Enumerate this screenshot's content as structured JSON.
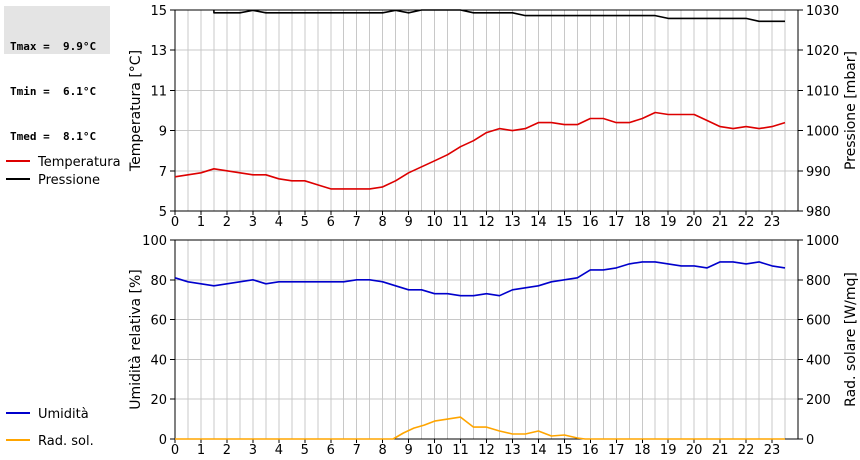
{
  "stats": {
    "lines": [
      "Tmax =  9.9°C",
      "Tmin =  6.1°C",
      "Tmed =  8.1°C"
    ]
  },
  "colors": {
    "temperature": "#dd0000",
    "pressure": "#000000",
    "humidity": "#0000cc",
    "radiation": "#ffa500",
    "grid": "#c8c8c8"
  },
  "chart_data": [
    {
      "type": "line",
      "ylabel": "Temperatura [°C]",
      "y2label": "Pressione [mbar]",
      "ylim": [
        5,
        15
      ],
      "y2lim": [
        980,
        1030
      ],
      "yticks": [
        5,
        7,
        9,
        11,
        13,
        15
      ],
      "y2ticks": [
        980,
        990,
        1000,
        1010,
        1020,
        1030
      ],
      "xlim": [
        0,
        24
      ],
      "xticks": [
        0,
        1,
        2,
        3,
        4,
        5,
        6,
        7,
        8,
        9,
        10,
        11,
        12,
        13,
        14,
        15,
        16,
        17,
        18,
        19,
        20,
        21,
        22,
        23
      ],
      "grid": true,
      "legend_placement": "left",
      "series": [
        {
          "name": "Temperatura",
          "axis": "left",
          "color": "#dd0000",
          "x": [
            0,
            0.5,
            1,
            1.5,
            2,
            2.5,
            3,
            3.5,
            4,
            4.5,
            5,
            5.5,
            6,
            6.5,
            7,
            7.5,
            8,
            8.5,
            9,
            9.5,
            10,
            10.5,
            11,
            11.5,
            12,
            12.5,
            13,
            13.5,
            14,
            14.5,
            15,
            15.5,
            16,
            16.5,
            17,
            17.5,
            18,
            18.5,
            19,
            19.5,
            20,
            20.5,
            21,
            21.5,
            22,
            22.5,
            23,
            23.5
          ],
          "values": [
            6.7,
            6.8,
            6.9,
            7.1,
            7.0,
            6.9,
            6.8,
            6.8,
            6.6,
            6.5,
            6.5,
            6.3,
            6.1,
            6.1,
            6.1,
            6.1,
            6.2,
            6.5,
            6.9,
            7.2,
            7.5,
            7.8,
            8.2,
            8.5,
            8.9,
            9.1,
            9.0,
            9.1,
            9.4,
            9.4,
            9.3,
            9.3,
            9.6,
            9.6,
            9.4,
            9.4,
            9.6,
            9.9,
            9.8,
            9.8,
            9.8,
            9.5,
            9.2,
            9.1,
            9.2,
            9.1,
            9.2,
            9.4
          ]
        },
        {
          "name": "Pressione",
          "axis": "right",
          "color": "#000000",
          "x": [
            1.5,
            1.5,
            2.5,
            3,
            3.5,
            4,
            5,
            6,
            7,
            8,
            8.5,
            9,
            9.5,
            11,
            11.5,
            12,
            13,
            13.5,
            14,
            15,
            16,
            17,
            18,
            18.5,
            19,
            20,
            21,
            22,
            22.5,
            23,
            23.5
          ],
          "values": [
            1030,
            1029.3,
            1029.3,
            1029.9,
            1029.3,
            1029.3,
            1029.3,
            1029.3,
            1029.3,
            1029.3,
            1029.9,
            1029.3,
            1030,
            1030,
            1029.3,
            1029.3,
            1029.3,
            1028.6,
            1028.6,
            1028.6,
            1028.6,
            1028.6,
            1028.6,
            1028.6,
            1027.9,
            1027.9,
            1027.9,
            1027.9,
            1027.2,
            1027.2,
            1027.2
          ]
        }
      ]
    },
    {
      "type": "line",
      "ylabel": "Umidità relativa [%]",
      "y2label": "Rad. solare [W/mq]",
      "ylim": [
        0,
        100
      ],
      "y2lim": [
        0,
        1000
      ],
      "yticks": [
        0,
        20,
        40,
        60,
        80,
        100
      ],
      "y2ticks": [
        0,
        200,
        400,
        600,
        800,
        1000
      ],
      "xlim": [
        0,
        24
      ],
      "xticks": [
        0,
        1,
        2,
        3,
        4,
        5,
        6,
        7,
        8,
        9,
        10,
        11,
        12,
        13,
        14,
        15,
        16,
        17,
        18,
        19,
        20,
        21,
        22,
        23
      ],
      "grid": true,
      "legend_placement": "left",
      "series": [
        {
          "name": "Umidità",
          "axis": "left",
          "color": "#0000cc",
          "x": [
            0,
            0.5,
            1,
            1.5,
            2,
            2.5,
            3,
            3.5,
            4,
            4.5,
            5,
            5.5,
            6,
            6.5,
            7,
            7.5,
            8,
            8.5,
            9,
            9.5,
            10,
            10.5,
            11,
            11.5,
            12,
            12.5,
            13,
            13.5,
            14,
            14.5,
            15,
            15.5,
            16,
            16.5,
            17,
            17.5,
            18,
            18.5,
            19,
            19.5,
            20,
            20.5,
            21,
            21.5,
            22,
            22.5,
            23,
            23.5
          ],
          "values": [
            81,
            79,
            78,
            77,
            78,
            79,
            80,
            78,
            79,
            79,
            79,
            79,
            79,
            79,
            80,
            80,
            79,
            77,
            75,
            75,
            73,
            73,
            72,
            72,
            73,
            72,
            75,
            76,
            77,
            79,
            80,
            81,
            85,
            85,
            86,
            88,
            89,
            89,
            88,
            87,
            87,
            86,
            89,
            89,
            88,
            89,
            87,
            86
          ]
        },
        {
          "name": "Rad. sol.",
          "axis": "right",
          "color": "#ffa500",
          "x": [
            0,
            8.4,
            8.8,
            9.2,
            9.6,
            10,
            10.5,
            11,
            11.5,
            12,
            12.5,
            13,
            13.5,
            14,
            14.5,
            15,
            15.5,
            15.8,
            16,
            23.5
          ],
          "values": [
            0,
            0,
            30,
            55,
            70,
            90,
            100,
            110,
            60,
            60,
            40,
            25,
            25,
            40,
            15,
            20,
            5,
            0,
            0,
            0
          ]
        }
      ]
    }
  ]
}
